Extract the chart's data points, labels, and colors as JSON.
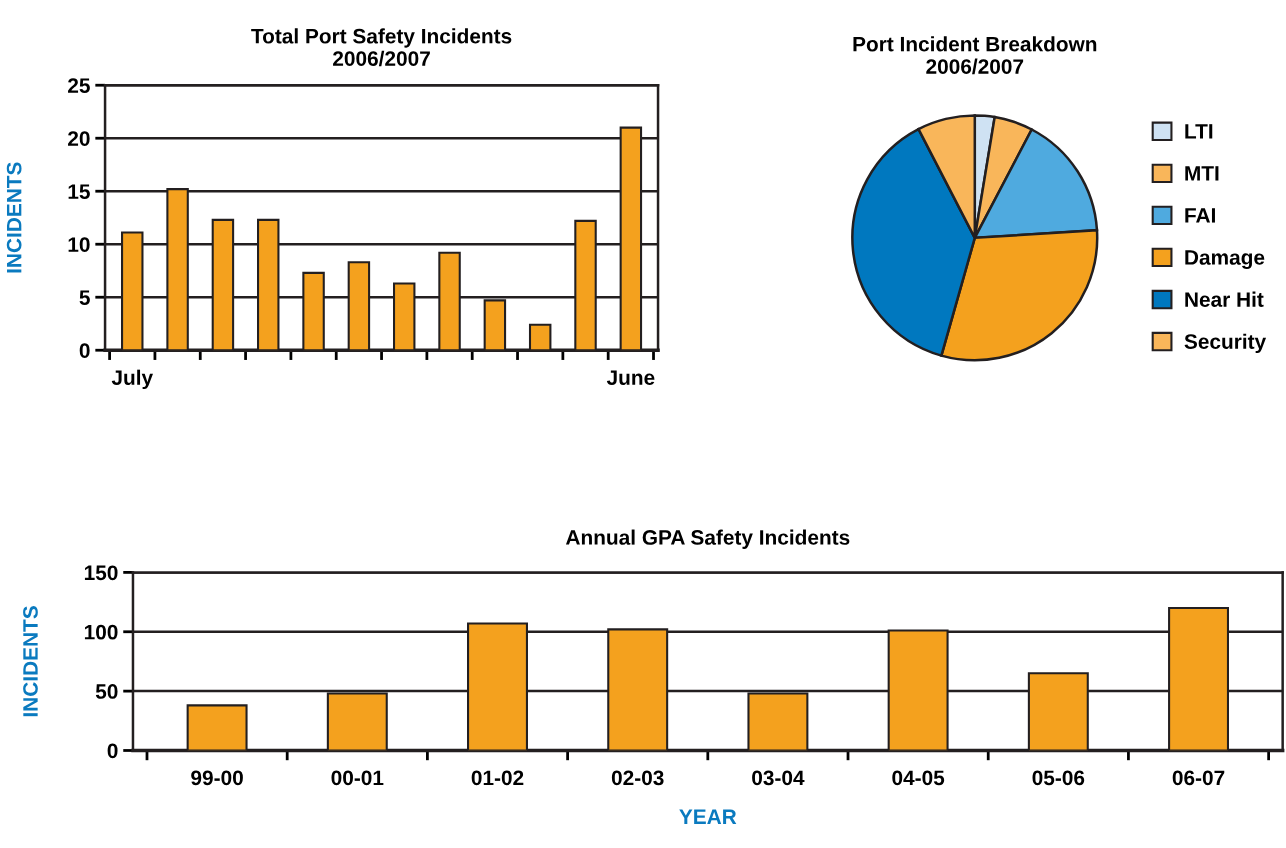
{
  "chart_data": [
    {
      "type": "bar",
      "title": "Total Port Safety Incidents\n2006/2007",
      "ylabel": "INCIDENTS",
      "categories": [
        "July",
        null,
        null,
        null,
        null,
        null,
        null,
        null,
        null,
        null,
        null,
        "June"
      ],
      "values": [
        11.1,
        15.2,
        12.3,
        12.3,
        7.3,
        8.3,
        6.3,
        9.2,
        4.7,
        2.4,
        12.2,
        21.0
      ],
      "color": "#f4a11e",
      "ylim": [
        0,
        25
      ],
      "yticks": [
        0,
        5,
        10,
        15,
        20,
        25
      ],
      "grid": "y"
    },
    {
      "type": "pie",
      "title": "Port Incident Breakdown\n2006/2007",
      "categories": [
        "LTI",
        "MTI",
        "FAI",
        "Damage",
        "Near Hit",
        "Security"
      ],
      "values": [
        2.6,
        5.1,
        16.3,
        30.4,
        38.0,
        7.6
      ],
      "colors": [
        "#cfe2f3",
        "#f9b65a",
        "#4faadf",
        "#f4a11e",
        "#0078bf",
        "#f9b65a"
      ],
      "legend": "right"
    },
    {
      "type": "bar",
      "title": "Annual GPA Safety Incidents",
      "xlabel": "YEAR",
      "ylabel": "INCIDENTS",
      "categories": [
        "99-00",
        "00-01",
        "01-02",
        "02-03",
        "03-04",
        "04-05",
        "05-06",
        "06-07"
      ],
      "values": [
        38,
        48,
        107,
        102,
        48,
        101,
        65,
        120
      ],
      "color": "#f4a11e",
      "ylim": [
        0,
        150
      ],
      "yticks": [
        0,
        50,
        100,
        150
      ],
      "grid": "y"
    }
  ]
}
